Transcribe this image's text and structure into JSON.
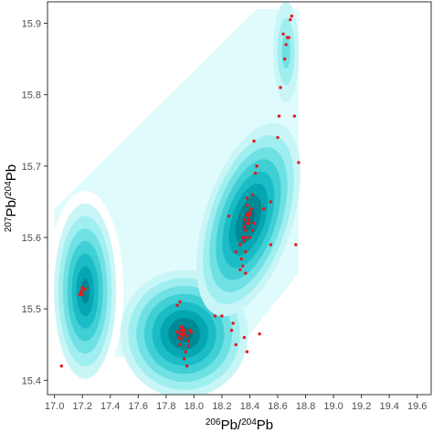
{
  "chart_data": {
    "type": "scatter",
    "title": "",
    "xlabel": {
      "parts": [
        {
          "text": "206",
          "sup": true
        },
        {
          "text": "Pb/",
          "sup": false
        },
        {
          "text": "204",
          "sup": true
        },
        {
          "text": "Pb",
          "sup": false
        }
      ]
    },
    "ylabel": {
      "parts": [
        {
          "text": "207",
          "sup": true
        },
        {
          "text": "Pb/",
          "sup": false
        },
        {
          "text": "204",
          "sup": true
        },
        {
          "text": "Pb",
          "sup": false
        }
      ]
    },
    "xlim": [
      16.95,
      19.7
    ],
    "ylim": [
      15.38,
      15.93
    ],
    "x_ticks": [
      "17.0",
      "17.2",
      "17.4",
      "17.6",
      "17.8",
      "18.0",
      "18.2",
      "18.4",
      "18.6",
      "18.8",
      "19.0",
      "19.2",
      "19.4",
      "19.6"
    ],
    "y_ticks": [
      "15.4",
      "15.5",
      "15.6",
      "15.7",
      "15.8",
      "15.9"
    ],
    "grid": false,
    "colors": {
      "point": "#e41a1c",
      "density_low": "#dffbfb",
      "density_mid": "#7fe6e8",
      "density_high": "#00b3bf",
      "density_peak": "#007f8a"
    },
    "density_regions": [
      {
        "name": "wedge",
        "x": [
          17.0,
          18.75
        ],
        "y": [
          15.43,
          15.92
        ],
        "level": 1
      },
      {
        "name": "left-cluster",
        "cx": 17.22,
        "cy": 15.525,
        "level": 4
      },
      {
        "name": "lower-cluster",
        "cx": 17.93,
        "cy": 15.465,
        "level": 5
      },
      {
        "name": "upper-cluster",
        "cx": 18.39,
        "cy": 15.625,
        "level": 5
      },
      {
        "name": "top-band",
        "cx": 18.66,
        "cy": 15.86,
        "level": 2
      }
    ],
    "series": [
      {
        "x": [
          17.05,
          17.18,
          17.19,
          17.2,
          17.21,
          17.2,
          17.22,
          17.19,
          17.88,
          17.9,
          17.91,
          17.92,
          17.89,
          17.93,
          17.95,
          17.9,
          17.94,
          17.96,
          17.92,
          17.91,
          17.97,
          17.93,
          17.95,
          17.9,
          17.88,
          17.92,
          17.96,
          17.91,
          17.98,
          17.93,
          18.15,
          18.2,
          18.27,
          18.28,
          18.3,
          18.36,
          18.38,
          18.47,
          18.25,
          18.3,
          18.33,
          18.35,
          18.36,
          18.37,
          18.38,
          18.39,
          18.4,
          18.41,
          18.42,
          18.43,
          18.35,
          18.37,
          18.39,
          18.36,
          18.38,
          18.4,
          18.34,
          18.37,
          18.42,
          18.38,
          18.36,
          18.4,
          18.44,
          18.45,
          18.5,
          18.55,
          18.33,
          18.38,
          18.41,
          18.37,
          18.35,
          18.39,
          18.43,
          18.45,
          18.55,
          18.6,
          18.61,
          18.62,
          18.65,
          18.66,
          18.68,
          18.69,
          18.7,
          18.72,
          18.75,
          18.73,
          18.64,
          18.67
        ],
        "y": [
          15.42,
          15.52,
          15.525,
          15.53,
          15.527,
          15.52,
          15.528,
          15.522,
          15.505,
          15.51,
          15.47,
          15.468,
          15.46,
          15.465,
          15.462,
          15.45,
          15.44,
          15.448,
          15.472,
          15.475,
          15.47,
          15.43,
          15.42,
          15.465,
          15.468,
          15.463,
          15.455,
          15.458,
          15.467,
          15.47,
          15.49,
          15.49,
          15.47,
          15.48,
          15.45,
          15.46,
          15.44,
          15.465,
          15.63,
          15.58,
          15.555,
          15.56,
          15.595,
          15.6,
          15.62,
          15.63,
          15.635,
          15.64,
          15.61,
          15.62,
          15.6,
          15.61,
          15.625,
          15.615,
          15.632,
          15.633,
          15.57,
          15.58,
          15.66,
          15.645,
          15.625,
          15.6,
          15.69,
          15.7,
          15.64,
          15.65,
          15.59,
          15.655,
          15.64,
          15.55,
          15.6,
          15.62,
          15.735,
          15.7,
          15.59,
          15.74,
          15.77,
          15.81,
          15.85,
          15.87,
          15.88,
          15.905,
          15.91,
          15.77,
          15.705,
          15.59,
          15.885,
          15.88
        ]
      }
    ]
  }
}
